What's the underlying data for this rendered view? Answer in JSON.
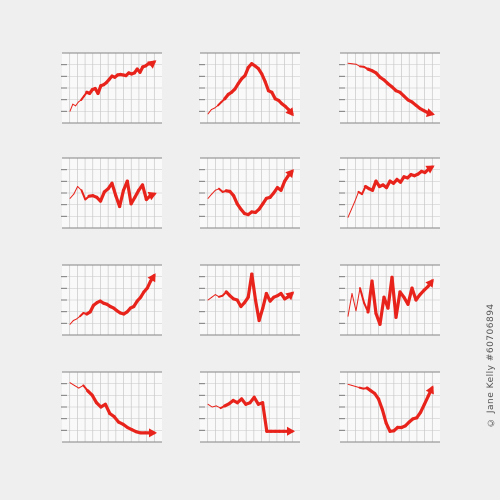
{
  "watermark": "© Jane Kelly #60706894",
  "colors": {
    "line": "#e8231b",
    "grid": "#c7c7c7",
    "panel": "#f9f9f9",
    "frame": "#9a9a9a",
    "tick": "#7a7a7a"
  },
  "chart_data": [
    {
      "type": "line",
      "y": [
        0.07,
        0.2,
        0.17,
        0.24,
        0.28,
        0.35,
        0.42,
        0.4,
        0.47,
        0.49,
        0.4,
        0.54,
        0.56,
        0.6,
        0.66,
        0.72,
        0.7,
        0.74,
        0.75,
        0.74,
        0.73,
        0.78,
        0.76,
        0.78,
        0.85,
        0.79,
        0.89,
        0.91,
        0.95,
        0.94,
        0.98
      ]
    },
    {
      "type": "line",
      "y": [
        0.02,
        0.1,
        0.13,
        0.18,
        0.24,
        0.3,
        0.38,
        0.42,
        0.48,
        0.58,
        0.67,
        0.73,
        0.88,
        0.95,
        0.91,
        0.86,
        0.76,
        0.62,
        0.45,
        0.42,
        0.3,
        0.27,
        0.21,
        0.16,
        0.1,
        0.02
      ]
    },
    {
      "type": "line",
      "y": [
        0.96,
        0.95,
        0.94,
        0.9,
        0.89,
        0.85,
        0.82,
        0.78,
        0.7,
        0.65,
        0.58,
        0.52,
        0.45,
        0.42,
        0.35,
        0.28,
        0.24,
        0.18,
        0.12,
        0.08,
        0.04,
        0.02
      ]
    },
    {
      "type": "line",
      "y": [
        0.4,
        0.48,
        0.62,
        0.55,
        0.38,
        0.44,
        0.45,
        0.42,
        0.35,
        0.52,
        0.58,
        0.68,
        0.45,
        0.25,
        0.55,
        0.72,
        0.3,
        0.42,
        0.55,
        0.65,
        0.38,
        0.45,
        0.48
      ]
    },
    {
      "type": "line",
      "y": [
        0.4,
        0.48,
        0.55,
        0.58,
        0.52,
        0.54,
        0.53,
        0.45,
        0.3,
        0.2,
        0.12,
        0.1,
        0.15,
        0.14,
        0.2,
        0.3,
        0.4,
        0.42,
        0.5,
        0.6,
        0.55,
        0.72,
        0.82,
        0.9
      ]
    },
    {
      "type": "line",
      "y": [
        0.05,
        0.2,
        0.35,
        0.52,
        0.48,
        0.62,
        0.58,
        0.55,
        0.72,
        0.62,
        0.65,
        0.6,
        0.72,
        0.68,
        0.75,
        0.7,
        0.8,
        0.78,
        0.84,
        0.82,
        0.85,
        0.9,
        0.88,
        0.94,
        0.98
      ]
    },
    {
      "type": "line",
      "y": [
        0.05,
        0.12,
        0.15,
        0.2,
        0.26,
        0.24,
        0.28,
        0.4,
        0.45,
        0.48,
        0.44,
        0.42,
        0.38,
        0.35,
        0.3,
        0.26,
        0.24,
        0.28,
        0.35,
        0.38,
        0.48,
        0.55,
        0.65,
        0.72,
        0.85,
        0.95
      ]
    },
    {
      "type": "line",
      "y": [
        0.5,
        0.55,
        0.6,
        0.56,
        0.58,
        0.65,
        0.58,
        0.52,
        0.5,
        0.38,
        0.45,
        0.55,
        0.98,
        0.5,
        0.12,
        0.35,
        0.62,
        0.48,
        0.55,
        0.58,
        0.62,
        0.52,
        0.56,
        0.62
      ]
    },
    {
      "type": "line",
      "y": [
        0.2,
        0.62,
        0.3,
        0.72,
        0.45,
        0.28,
        0.85,
        0.25,
        0.05,
        0.55,
        0.35,
        0.92,
        0.18,
        0.65,
        0.55,
        0.42,
        0.72,
        0.5,
        0.6,
        0.68,
        0.75,
        0.85
      ]
    },
    {
      "type": "line",
      "y": [
        0.95,
        0.9,
        0.85,
        0.9,
        0.8,
        0.72,
        0.58,
        0.5,
        0.55,
        0.38,
        0.32,
        0.22,
        0.18,
        0.12,
        0.08,
        0.04,
        0.02,
        0.02,
        0.02,
        0.02
      ]
    },
    {
      "type": "line",
      "y": [
        0.55,
        0.5,
        0.52,
        0.48,
        0.52,
        0.56,
        0.62,
        0.58,
        0.65,
        0.55,
        0.58,
        0.68,
        0.55,
        0.58,
        0.05,
        0.05,
        0.05,
        0.05,
        0.05,
        0.05,
        0.05
      ]
    },
    {
      "type": "line",
      "y": [
        0.92,
        0.9,
        0.88,
        0.86,
        0.84,
        0.85,
        0.8,
        0.75,
        0.65,
        0.45,
        0.2,
        0.05,
        0.06,
        0.12,
        0.12,
        0.15,
        0.22,
        0.28,
        0.3,
        0.4,
        0.55,
        0.7,
        0.85
      ]
    }
  ]
}
